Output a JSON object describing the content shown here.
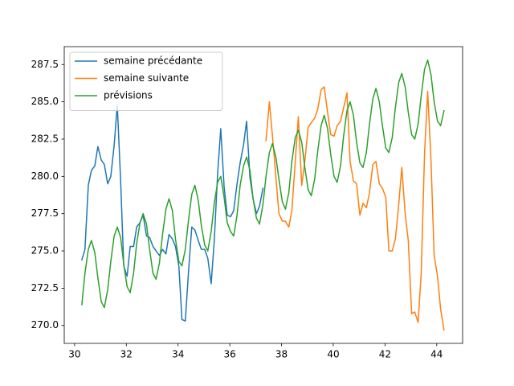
{
  "chart_data": {
    "type": "line",
    "xlim": [
      29.6,
      45.0
    ],
    "xticks": [
      30,
      32,
      34,
      36,
      38,
      40,
      42,
      44
    ],
    "ylim": [
      268.8,
      288.7
    ],
    "yticks": [
      {
        "value": 270,
        "label": "270.0"
      },
      272.5,
      {
        "value": 275,
        "label": "275.0"
      },
      277.5,
      {
        "value": 280,
        "label": "280.0"
      },
      282.5,
      {
        "value": 285,
        "label": "285.0"
      },
      287.5
    ],
    "legend": "upper left",
    "series": [
      {
        "name": "semaine précédante",
        "color": "#1f77b4",
        "x": [
          30.28,
          30.4,
          30.53,
          30.65,
          30.78,
          30.9,
          31.03,
          31.15,
          31.28,
          31.4,
          31.53,
          31.65,
          31.78,
          31.9,
          32.03,
          32.15,
          32.28,
          32.4,
          32.53,
          32.65,
          32.78,
          32.9,
          33.03,
          33.15,
          33.28,
          33.4,
          33.53,
          33.65,
          33.78,
          33.9,
          34.03,
          34.15,
          34.28,
          34.4,
          34.53,
          34.65,
          34.78,
          34.9,
          35.03,
          35.15,
          35.28,
          35.4,
          35.53,
          35.65,
          35.78,
          35.9,
          36.03,
          36.15,
          36.28,
          36.4,
          36.53,
          36.65,
          36.78,
          36.9,
          37.03,
          37.15,
          37.28
        ],
        "values": [
          274.4,
          275.1,
          279.4,
          280.4,
          280.7,
          282.0,
          281.1,
          280.8,
          279.5,
          280.0,
          282.1,
          284.8,
          279.7,
          274.0,
          273.3,
          275.3,
          275.3,
          276.6,
          276.9,
          277.4,
          276.0,
          275.9,
          275.3,
          275.0,
          274.7,
          275.1,
          274.8,
          276.1,
          275.8,
          275.3,
          274.0,
          270.4,
          270.3,
          273.5,
          276.6,
          276.4,
          275.7,
          275.1,
          275.1,
          274.5,
          272.8,
          275.7,
          280.2,
          283.2,
          279.3,
          277.4,
          277.3,
          277.7,
          279.5,
          280.9,
          282.1,
          283.7,
          279.9,
          278.5,
          277.5,
          278.0,
          279.2
        ]
      },
      {
        "name": "semaine suivante",
        "color": "#ff7f0e",
        "x": [
          37.4,
          37.53,
          37.65,
          37.78,
          37.9,
          38.03,
          38.15,
          38.28,
          38.4,
          38.53,
          38.65,
          38.78,
          38.9,
          39.03,
          39.15,
          39.28,
          39.4,
          39.53,
          39.65,
          39.78,
          39.9,
          40.03,
          40.15,
          40.28,
          40.4,
          40.53,
          40.65,
          40.78,
          40.9,
          41.03,
          41.15,
          41.28,
          41.4,
          41.53,
          41.65,
          41.78,
          41.9,
          42.03,
          42.15,
          42.28,
          42.4,
          42.53,
          42.65,
          42.78,
          42.9,
          43.03,
          43.15,
          43.28,
          43.4,
          43.53,
          43.65,
          43.78,
          43.9,
          44.03,
          44.15,
          44.28
        ],
        "values": [
          282.4,
          285.0,
          282.7,
          280.0,
          277.5,
          277.0,
          277.0,
          276.6,
          277.7,
          281.0,
          284.0,
          279.4,
          281.0,
          283.3,
          283.6,
          283.9,
          284.5,
          285.8,
          286.0,
          284.3,
          282.8,
          282.7,
          283.4,
          283.7,
          284.6,
          285.6,
          281.0,
          279.7,
          279.5,
          277.4,
          278.2,
          277.9,
          278.9,
          280.8,
          281.0,
          279.5,
          279.2,
          278.6,
          275.0,
          275.0,
          275.8,
          278.1,
          280.6,
          277.5,
          275.7,
          270.8,
          270.9,
          270.2,
          273.5,
          281.6,
          285.7,
          281.0,
          274.7,
          273.3,
          271.1,
          269.7
        ]
      },
      {
        "name": "prévisions",
        "color": "#2ca02c",
        "x": [
          30.28,
          30.4,
          30.53,
          30.65,
          30.78,
          30.9,
          31.03,
          31.15,
          31.28,
          31.4,
          31.53,
          31.65,
          31.78,
          31.9,
          32.03,
          32.15,
          32.28,
          32.4,
          32.53,
          32.65,
          32.78,
          32.9,
          33.03,
          33.15,
          33.28,
          33.4,
          33.53,
          33.65,
          33.78,
          33.9,
          34.03,
          34.15,
          34.28,
          34.4,
          34.53,
          34.65,
          34.78,
          34.9,
          35.03,
          35.15,
          35.28,
          35.4,
          35.53,
          35.65,
          35.78,
          35.9,
          36.03,
          36.15,
          36.28,
          36.4,
          36.53,
          36.65,
          36.78,
          36.9,
          37.03,
          37.15,
          37.28,
          37.4,
          37.53,
          37.65,
          37.78,
          37.9,
          38.03,
          38.15,
          38.28,
          38.4,
          38.53,
          38.65,
          38.78,
          38.9,
          39.03,
          39.15,
          39.28,
          39.4,
          39.53,
          39.65,
          39.78,
          39.9,
          40.03,
          40.15,
          40.28,
          40.4,
          40.53,
          40.65,
          40.78,
          40.9,
          41.03,
          41.15,
          41.28,
          41.4,
          41.53,
          41.65,
          41.78,
          41.9,
          42.03,
          42.15,
          42.28,
          42.4,
          42.53,
          42.65,
          42.78,
          42.9,
          43.03,
          43.15,
          43.28,
          43.4,
          43.53,
          43.65,
          43.78,
          43.9,
          44.03,
          44.15,
          44.28
        ],
        "values": [
          271.4,
          273.5,
          275.1,
          275.7,
          274.9,
          273.2,
          271.6,
          271.2,
          272.4,
          274.3,
          276.0,
          276.6,
          275.9,
          274.1,
          272.6,
          272.2,
          273.5,
          275.5,
          276.9,
          277.5,
          276.8,
          275.1,
          273.5,
          273.1,
          274.2,
          276.1,
          277.8,
          278.5,
          277.7,
          275.8,
          274.3,
          274.0,
          275.1,
          277.0,
          278.8,
          279.4,
          278.4,
          276.7,
          275.4,
          275.0,
          276.3,
          278.2,
          279.6,
          280.0,
          278.6,
          276.9,
          276.3,
          276.0,
          277.4,
          279.4,
          280.7,
          281.3,
          280.4,
          278.5,
          277.2,
          276.8,
          278.1,
          280.0,
          281.6,
          282.2,
          281.3,
          279.8,
          278.3,
          277.8,
          278.9,
          281.0,
          282.6,
          283.1,
          282.3,
          280.6,
          279.1,
          278.7,
          279.8,
          281.7,
          283.4,
          284.1,
          283.2,
          281.5,
          280.0,
          279.6,
          280.7,
          282.7,
          284.4,
          285.0,
          284.1,
          282.3,
          280.9,
          280.6,
          281.6,
          283.5,
          285.2,
          285.9,
          285.0,
          283.4,
          281.9,
          281.6,
          282.6,
          284.6,
          286.3,
          286.9,
          286.0,
          284.3,
          282.8,
          282.5,
          283.5,
          285.4,
          287.2,
          287.8,
          286.8,
          285.0,
          283.7,
          283.4,
          284.4
        ]
      }
    ]
  }
}
